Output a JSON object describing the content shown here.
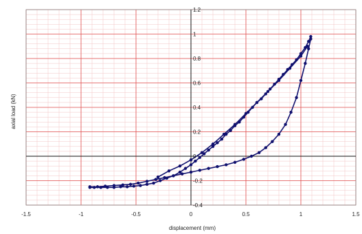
{
  "chart_data": {
    "type": "scatter",
    "title": "",
    "xlabel": "displacement (mm)",
    "ylabel": "axial load (kN)",
    "xlim": [
      -1.5,
      1.5
    ],
    "ylim": [
      -0.4,
      1.2
    ],
    "x_ticks": [
      "-1.5",
      "-1",
      "-0.5",
      "0",
      "0.5",
      "1",
      "1.5"
    ],
    "y_ticks": [
      "-0.4",
      "-0.2",
      "0",
      "0.2",
      "0.4",
      "0.6",
      "0.8",
      "1",
      "1.2"
    ],
    "grid": true,
    "grid_color": "#e05050",
    "series_color": "#10106e",
    "series": [
      {
        "name": "",
        "x": [
          -0.92,
          -0.85,
          -0.78,
          -0.7,
          -0.62,
          -0.55,
          -0.48,
          -0.4,
          -0.32,
          -0.24,
          -0.16,
          -0.08,
          0.0,
          0.08,
          0.16,
          0.24,
          0.32,
          0.4,
          0.48,
          0.55,
          0.62,
          0.68,
          0.74,
          0.8,
          0.86,
          0.91,
          0.96,
          1.0,
          1.04,
          1.07,
          1.09,
          1.09,
          1.07,
          1.04,
          1.0,
          0.96,
          0.92,
          0.88,
          0.84,
          0.8,
          0.76,
          0.72,
          0.68,
          0.64,
          0.6,
          0.56,
          0.52,
          0.48,
          0.44,
          0.4,
          0.36,
          0.32,
          0.28,
          0.24,
          0.2,
          0.16,
          0.12,
          0.08,
          0.04,
          0.0,
          -0.05,
          -0.1,
          -0.16,
          -0.22,
          -0.28,
          -0.34,
          -0.4,
          -0.46,
          -0.52,
          -0.58,
          -0.64,
          -0.7,
          -0.76,
          -0.82,
          -0.88,
          -0.92
        ],
        "y": [
          -0.25,
          -0.25,
          -0.245,
          -0.24,
          -0.235,
          -0.23,
          -0.22,
          -0.205,
          -0.19,
          -0.175,
          -0.16,
          -0.145,
          -0.13,
          -0.115,
          -0.1,
          -0.085,
          -0.07,
          -0.05,
          -0.025,
          0.0,
          0.03,
          0.07,
          0.12,
          0.18,
          0.26,
          0.36,
          0.48,
          0.62,
          0.76,
          0.88,
          0.96,
          0.98,
          0.94,
          0.89,
          0.84,
          0.79,
          0.75,
          0.71,
          0.67,
          0.63,
          0.59,
          0.55,
          0.51,
          0.47,
          0.44,
          0.4,
          0.36,
          0.32,
          0.28,
          0.25,
          0.21,
          0.18,
          0.14,
          0.11,
          0.08,
          0.05,
          0.02,
          -0.01,
          -0.04,
          -0.07,
          -0.1,
          -0.13,
          -0.16,
          -0.18,
          -0.2,
          -0.22,
          -0.23,
          -0.24,
          -0.245,
          -0.25,
          -0.25,
          -0.255,
          -0.255,
          -0.255,
          -0.255,
          -0.255
        ]
      },
      {
        "name": "",
        "x": [
          -0.3,
          -0.2,
          -0.1,
          0.0,
          0.1,
          0.2,
          0.3,
          0.4,
          0.5,
          0.6,
          0.7,
          0.8,
          0.9,
          1.0,
          1.06
        ],
        "y": [
          -0.17,
          -0.12,
          -0.08,
          -0.03,
          0.03,
          0.1,
          0.18,
          0.26,
          0.35,
          0.44,
          0.53,
          0.62,
          0.72,
          0.82,
          0.9
        ]
      }
    ]
  }
}
